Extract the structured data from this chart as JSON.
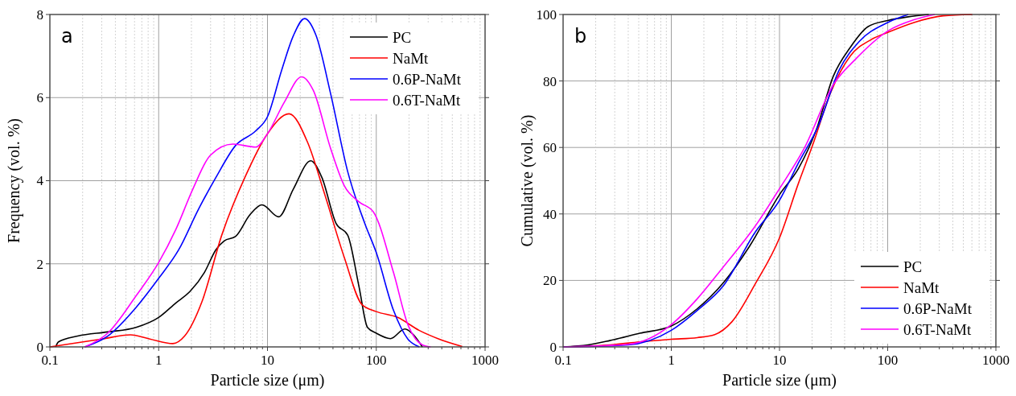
{
  "chart_data": [
    {
      "type": "line",
      "title": "a",
      "xlabel": "Particle size (μm)",
      "ylabel": "Frequency (vol. %)",
      "log": "x",
      "grid": true,
      "legend": "top right",
      "xlim": [
        0.1,
        1000
      ],
      "xticks": [
        0.1,
        1,
        10,
        100,
        1000
      ],
      "ylim": [
        0,
        8
      ],
      "yticks": [
        0,
        2,
        4,
        6,
        8
      ],
      "series": [
        {
          "name": "PC",
          "color": "#000000",
          "x": [
            0.113,
            0.12,
            0.18,
            0.34,
            0.62,
            1,
            1.44,
            1.95,
            2.63,
            3.36,
            4.0,
            5.1,
            6.9,
            8.9,
            12.7,
            17.3,
            25,
            31.6,
            42.7,
            54.6,
            69.5,
            83,
            100,
            135,
            183,
            220,
            265
          ],
          "values": [
            0,
            0.12,
            0.26,
            0.36,
            0.47,
            0.71,
            1.06,
            1.34,
            1.79,
            2.34,
            2.55,
            2.66,
            3.18,
            3.42,
            3.13,
            3.8,
            4.48,
            4.08,
            2.97,
            2.69,
            1.44,
            0.47,
            0.33,
            0.2,
            0.43,
            0.29,
            0
          ]
        },
        {
          "name": "NaMt",
          "color": "#ff0000",
          "x": [
            0.1,
            0.3,
            0.55,
            0.83,
            1.35,
            1.73,
            2.5,
            3.8,
            6.2,
            10,
            15.8,
            23.4,
            33.6,
            51,
            73.8,
            100,
            157,
            247,
            377,
            617
          ],
          "values": [
            0,
            0.19,
            0.29,
            0.19,
            0.08,
            0.26,
            1.09,
            2.69,
            4.08,
            5.13,
            5.61,
            4.92,
            3.67,
            2.14,
            1.02,
            0.85,
            0.71,
            0.4,
            0.19,
            0.01
          ]
        },
        {
          "name": "0.6P-NaMt",
          "color": "#0000ff",
          "x": [
            0.21,
            0.34,
            0.62,
            1,
            1.53,
            2.33,
            3.36,
            5.1,
            7.8,
            10,
            13.5,
            17.3,
            21.9,
            28,
            38,
            54.6,
            78.5,
            100,
            144,
            195,
            249
          ],
          "values": [
            0,
            0.26,
            0.95,
            1.65,
            2.34,
            3.32,
            4.08,
            4.85,
            5.2,
            5.54,
            6.66,
            7.49,
            7.9,
            7.49,
            6.1,
            4.22,
            2.97,
            2.27,
            0.88,
            0.19,
            0
          ]
        },
        {
          "name": "0.6T-NaMt",
          "color": "#ff00ff",
          "x": [
            0.21,
            0.34,
            0.62,
            1,
            1.44,
            2.07,
            2.98,
            4.8,
            7.8,
            10,
            14.3,
            20.6,
            26.4,
            38,
            51,
            69.5,
            94,
            144,
            195,
            265,
            316
          ],
          "values": [
            0,
            0.33,
            1.23,
            2.03,
            2.83,
            3.81,
            4.61,
            4.88,
            4.81,
            5.13,
            5.89,
            6.5,
            6.17,
            4.78,
            3.87,
            3.49,
            3.25,
            1.79,
            0.54,
            0.05,
            0
          ]
        }
      ]
    },
    {
      "type": "line",
      "title": "b",
      "xlabel": "Particle size (μm)",
      "ylabel": "Cumulative (vol. %)",
      "log": "x",
      "grid": true,
      "legend": "bottom right",
      "xlim": [
        0.1,
        1000
      ],
      "xticks": [
        0.1,
        1,
        10,
        100,
        1000
      ],
      "ylim": [
        0,
        100
      ],
      "yticks": [
        0,
        20,
        40,
        60,
        80,
        100
      ],
      "series": [
        {
          "name": "PC",
          "color": "#000000",
          "x": [
            0.1,
            0.17,
            0.27,
            0.51,
            1,
            1.74,
            3.03,
            5.27,
            10,
            15,
            21.7,
            31.5,
            45.3,
            65.5,
            100,
            155,
            240
          ],
          "values": [
            0,
            0.6,
            1.9,
            4.1,
            6.3,
            11.5,
            19.3,
            30.2,
            45.8,
            53.7,
            65,
            81.5,
            90.2,
            96.3,
            98.2,
            99.3,
            100
          ]
        },
        {
          "name": "NaMt",
          "color": "#ff0000",
          "x": [
            0.1,
            0.27,
            0.51,
            1,
            1.74,
            2.52,
            3.64,
            5.96,
            10,
            15,
            20.4,
            29.5,
            45.3,
            70,
            100,
            175,
            326,
            605
          ],
          "values": [
            0,
            0.6,
            1.5,
            2.3,
            2.8,
            3.7,
            7.6,
            18.9,
            32.8,
            49.3,
            61,
            76.3,
            87.6,
            92.4,
            94.6,
            97.6,
            99.6,
            100
          ]
        },
        {
          "name": "0.6P-NaMt",
          "color": "#0000ff",
          "x": [
            0.1,
            0.4,
            1,
            1.74,
            3.03,
            5.96,
            10,
            15,
            23,
            35.5,
            54.6,
            100,
            155
          ],
          "values": [
            0,
            0.6,
            5,
            11,
            18.4,
            34.5,
            44.1,
            55.4,
            66.7,
            83.2,
            91.9,
            97.6,
            100
          ]
        },
        {
          "name": "0.6T-NaMt",
          "color": "#ff00ff",
          "x": [
            0.1,
            0.4,
            1,
            1.74,
            3.03,
            5.96,
            10,
            16.9,
            31.5,
            51,
            100,
            175,
            272
          ],
          "values": [
            0,
            0.8,
            6.7,
            14.5,
            24.1,
            36.3,
            47.6,
            59.7,
            78.9,
            86.7,
            95,
            98.4,
            100
          ]
        }
      ]
    }
  ]
}
